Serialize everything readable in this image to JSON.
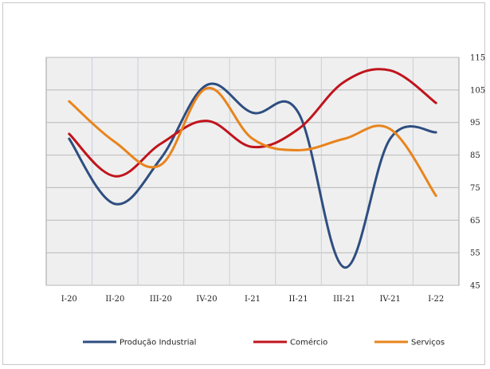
{
  "chart_data": {
    "type": "line",
    "title": "",
    "xlabel": "",
    "ylabel": "",
    "categories": [
      "I-20",
      "II-20",
      "III-20",
      "IV-20",
      "I-21",
      "II-21",
      "III-21",
      "IV-21",
      "I-22"
    ],
    "ylim": [
      45,
      115
    ],
    "yticks": [
      45,
      55,
      65,
      75,
      85,
      95,
      105,
      115
    ],
    "y_axis_side": "right",
    "grid": true,
    "legend_position": "bottom",
    "series": [
      {
        "name": "Produção Industrial",
        "color": "#2E4E80",
        "values": [
          90,
          70,
          84,
          106.5,
          98,
          98,
          50.5,
          90,
          92
        ]
      },
      {
        "name": "Comércio",
        "color": "#C0141C",
        "values": [
          91.5,
          78.5,
          88.5,
          95.5,
          87.5,
          93,
          107.5,
          111,
          101
        ]
      },
      {
        "name": "Serviços",
        "color": "#E8841C",
        "values": [
          101.5,
          89,
          82,
          105.5,
          90,
          86.5,
          90,
          93,
          72.5
        ]
      }
    ]
  }
}
